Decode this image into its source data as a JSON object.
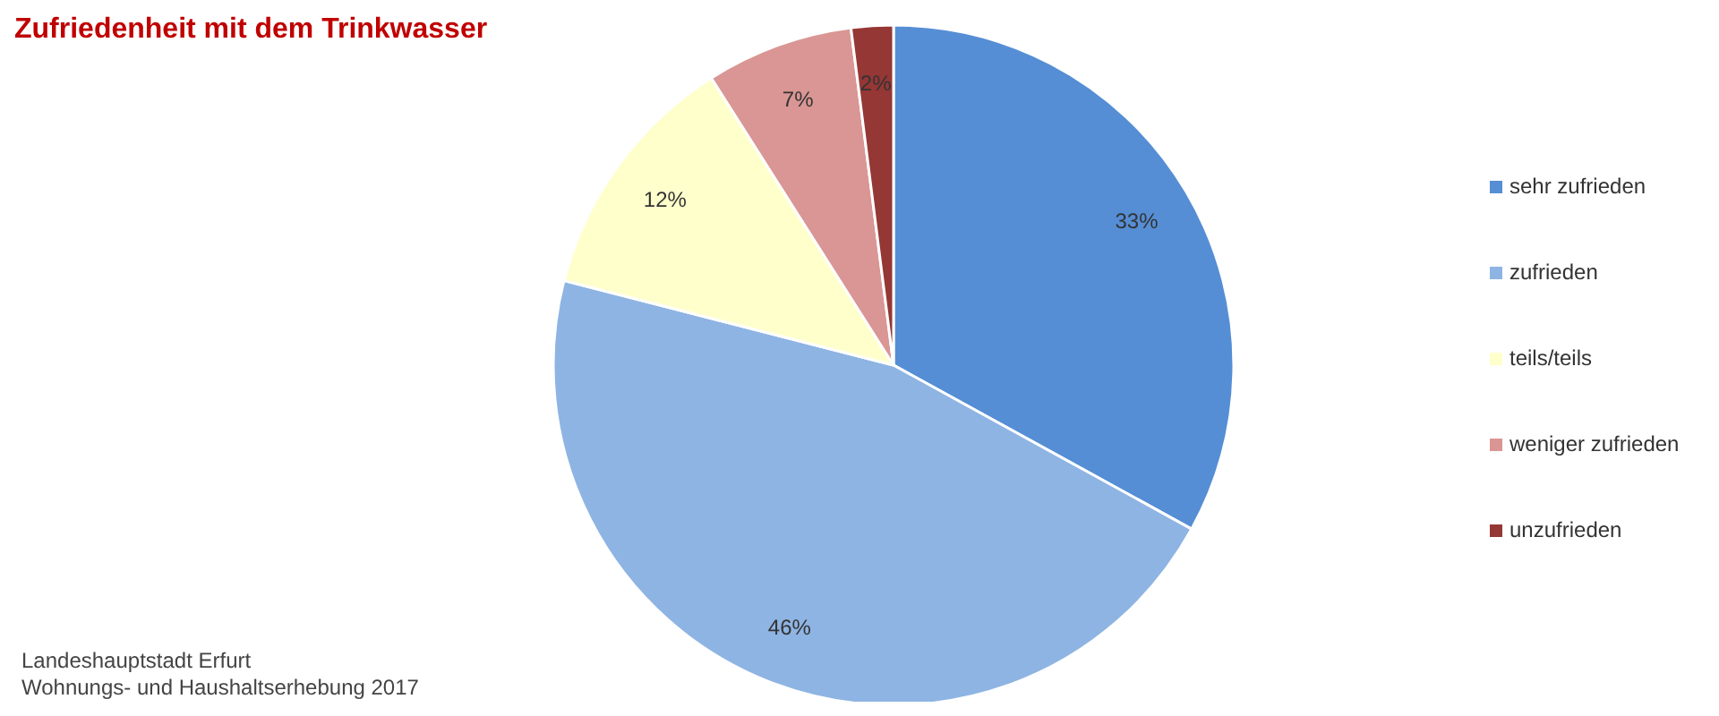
{
  "chart_data": {
    "type": "pie",
    "title": "Zufriedenheit mit dem Trinkwasser",
    "categories": [
      "sehr zufrieden",
      "zufrieden",
      "teils/teils",
      "weniger zufrieden",
      "unzufrieden"
    ],
    "values": [
      33,
      46,
      12,
      7,
      2
    ],
    "colors": [
      "#558ed5",
      "#8eb4e3",
      "#ffffcc",
      "#d99694",
      "#953735"
    ],
    "value_labels": [
      "33%",
      "46%",
      "12%",
      "7%",
      "2%"
    ],
    "legend": "right",
    "annotations": [
      "Landeshauptstadt Erfurt",
      "Wohnungs- und Haushaltserhebung 2017"
    ]
  }
}
